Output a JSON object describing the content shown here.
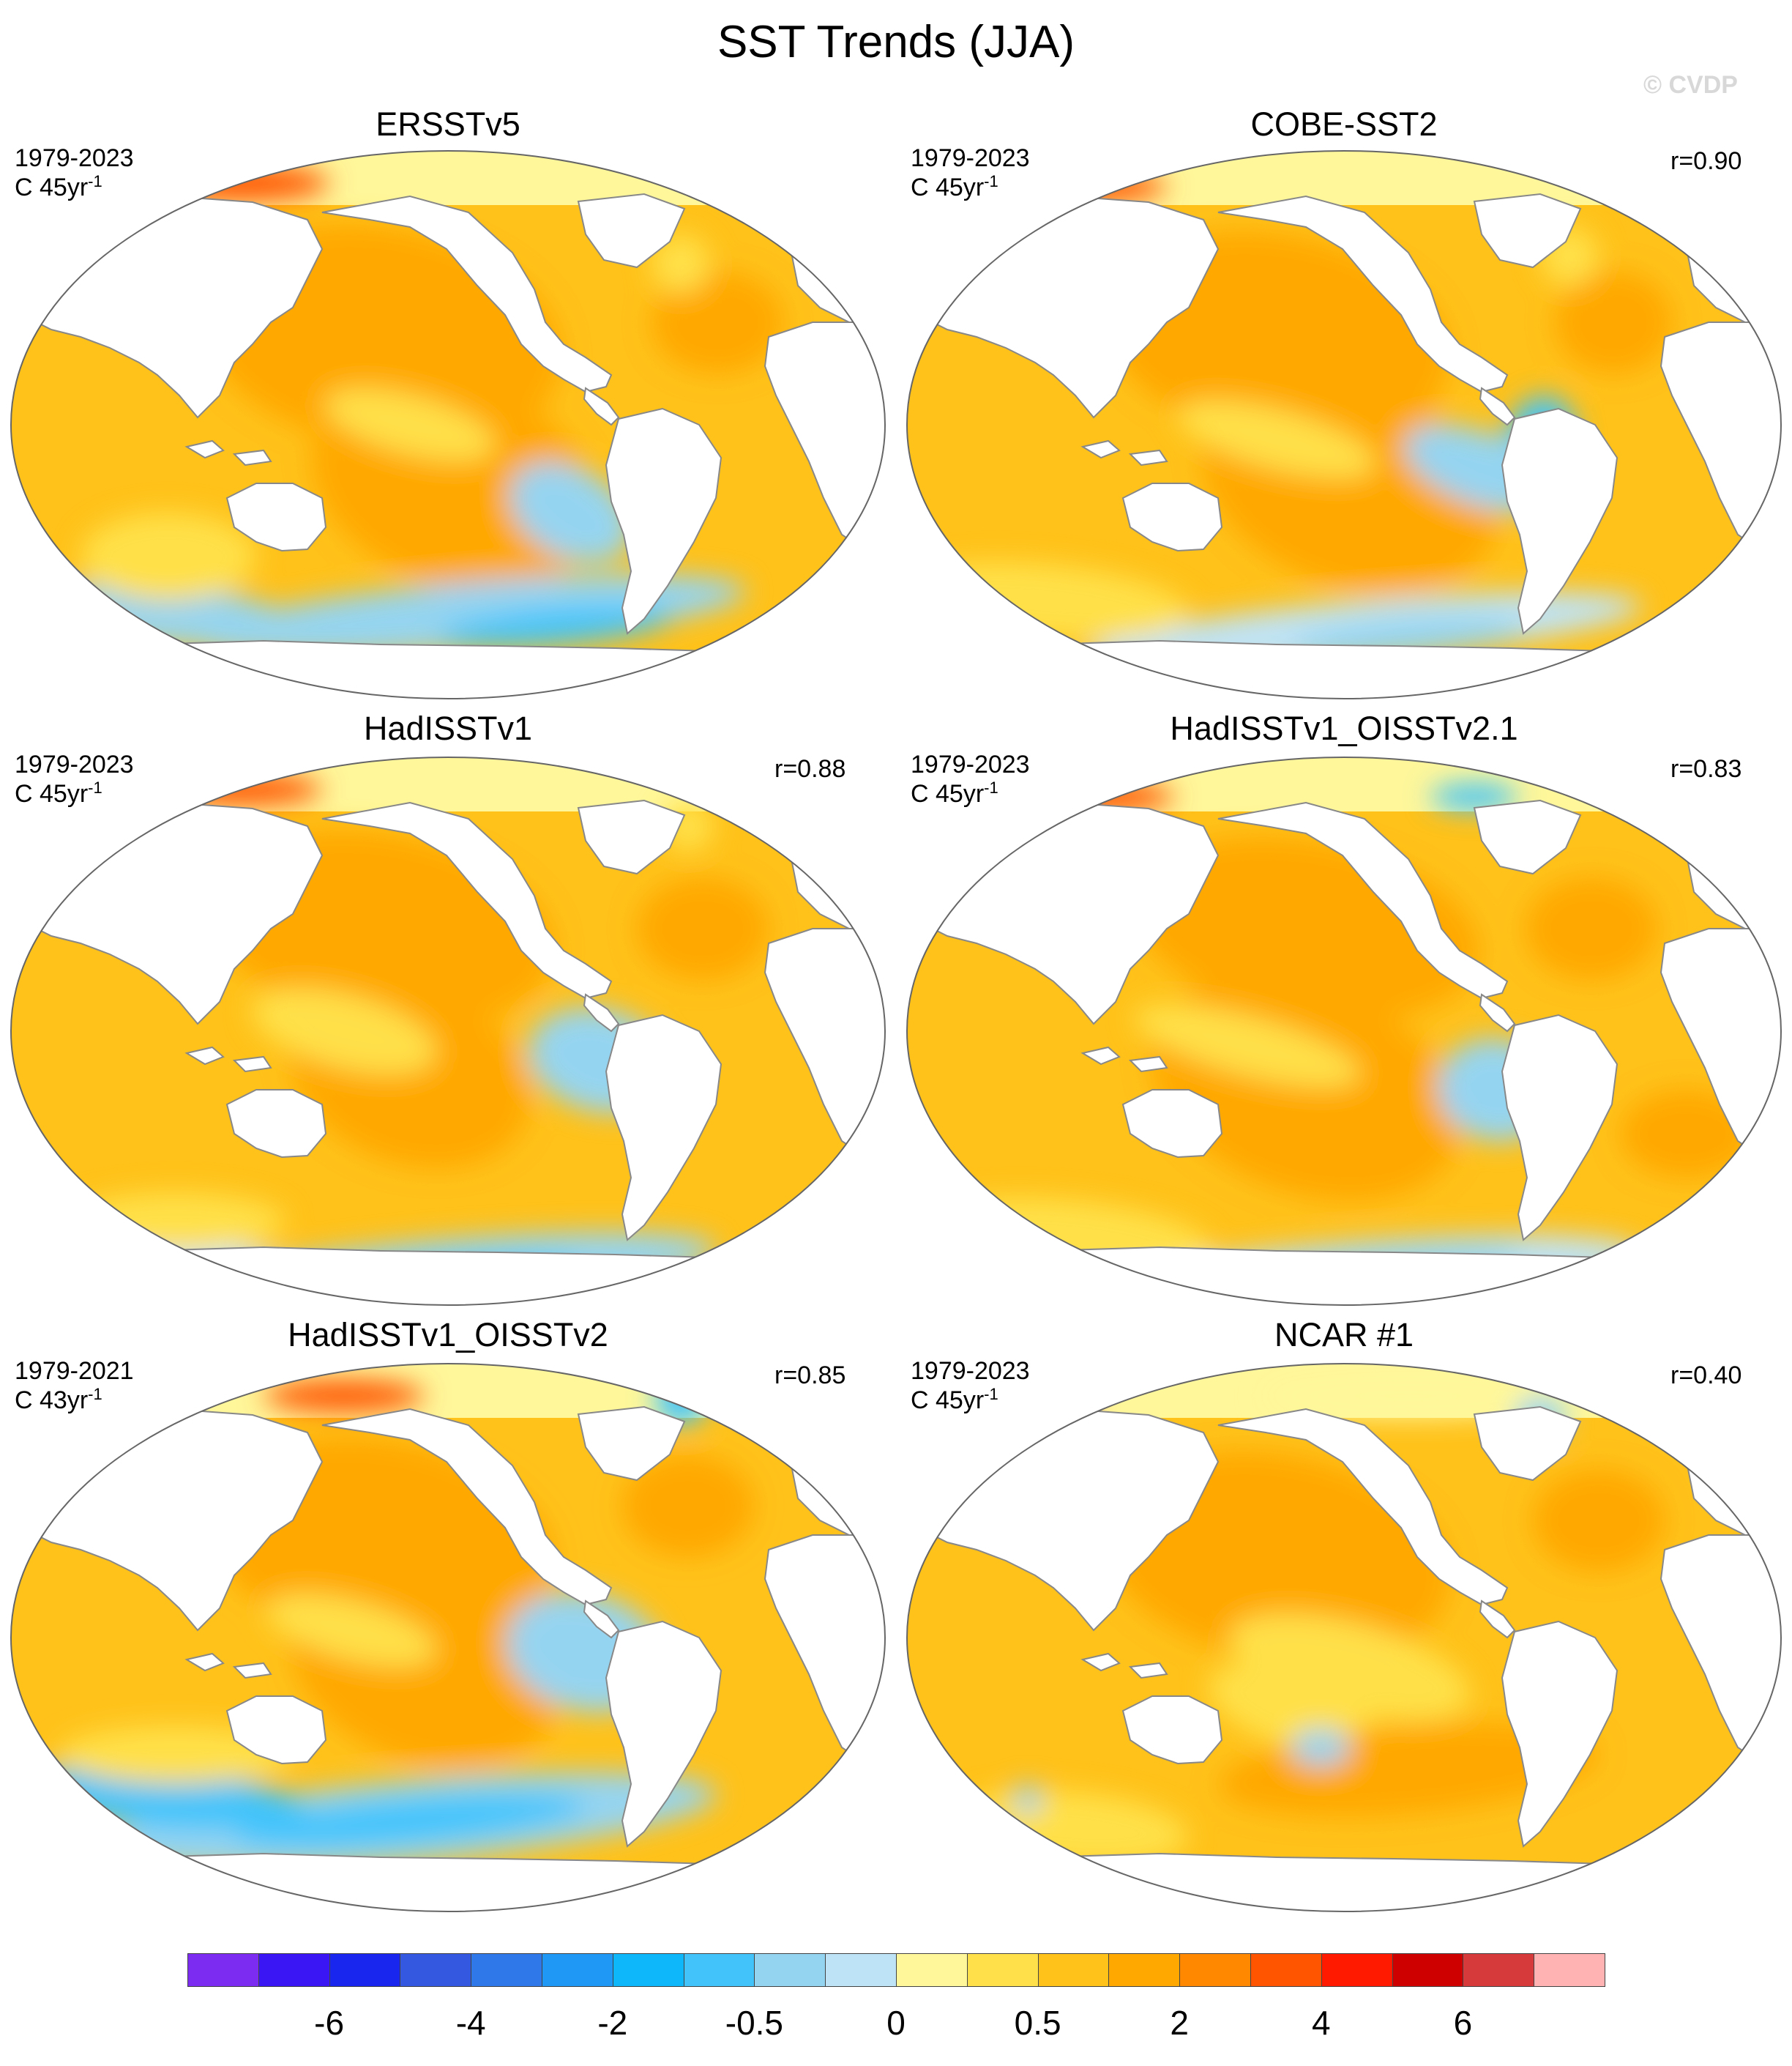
{
  "title": "SST Trends (JJA)",
  "watermark": "© CVDP",
  "panels": [
    {
      "name": "ERSSTv5",
      "period": "1979-2023",
      "unit_base": "C 45yr",
      "unit_exp": "-1",
      "r": ""
    },
    {
      "name": "COBE-SST2",
      "period": "1979-2023",
      "unit_base": "C 45yr",
      "unit_exp": "-1",
      "r": "r=0.90"
    },
    {
      "name": "HadISSTv1",
      "period": "1979-2023",
      "unit_base": "C 45yr",
      "unit_exp": "-1",
      "r": "r=0.88"
    },
    {
      "name": "HadISSTv1_OISSTv2.1",
      "period": "1979-2023",
      "unit_base": "C 45yr",
      "unit_exp": "-1",
      "r": "r=0.83"
    },
    {
      "name": "HadISSTv1_OISSTv2",
      "period": "1979-2021",
      "unit_base": "C 43yr",
      "unit_exp": "-1",
      "r": "r=0.85"
    },
    {
      "name": "NCAR #1",
      "period": "1979-2023",
      "unit_base": "C 45yr",
      "unit_exp": "-1",
      "r": "r=0.40"
    }
  ],
  "colorbar": {
    "colors": [
      "#7b2cf0",
      "#3a16f5",
      "#1826ee",
      "#3558e0",
      "#2f78ea",
      "#1f98f5",
      "#0db7fa",
      "#42c4fb",
      "#95d4f0",
      "#bfe3f6",
      "#fff79a",
      "#ffe04a",
      "#ffc21a",
      "#ffa800",
      "#ff8800",
      "#ff5500",
      "#ff1a00",
      "#cf0000",
      "#d63a3a",
      "#ffb3b3"
    ],
    "tick_labels": [
      "-6",
      "-4",
      "-2",
      "-0.5",
      "0",
      "0.5",
      "2",
      "4",
      "6"
    ],
    "tick_boundaries": [
      2,
      4,
      6,
      8,
      10,
      12,
      14,
      16,
      18
    ]
  }
}
